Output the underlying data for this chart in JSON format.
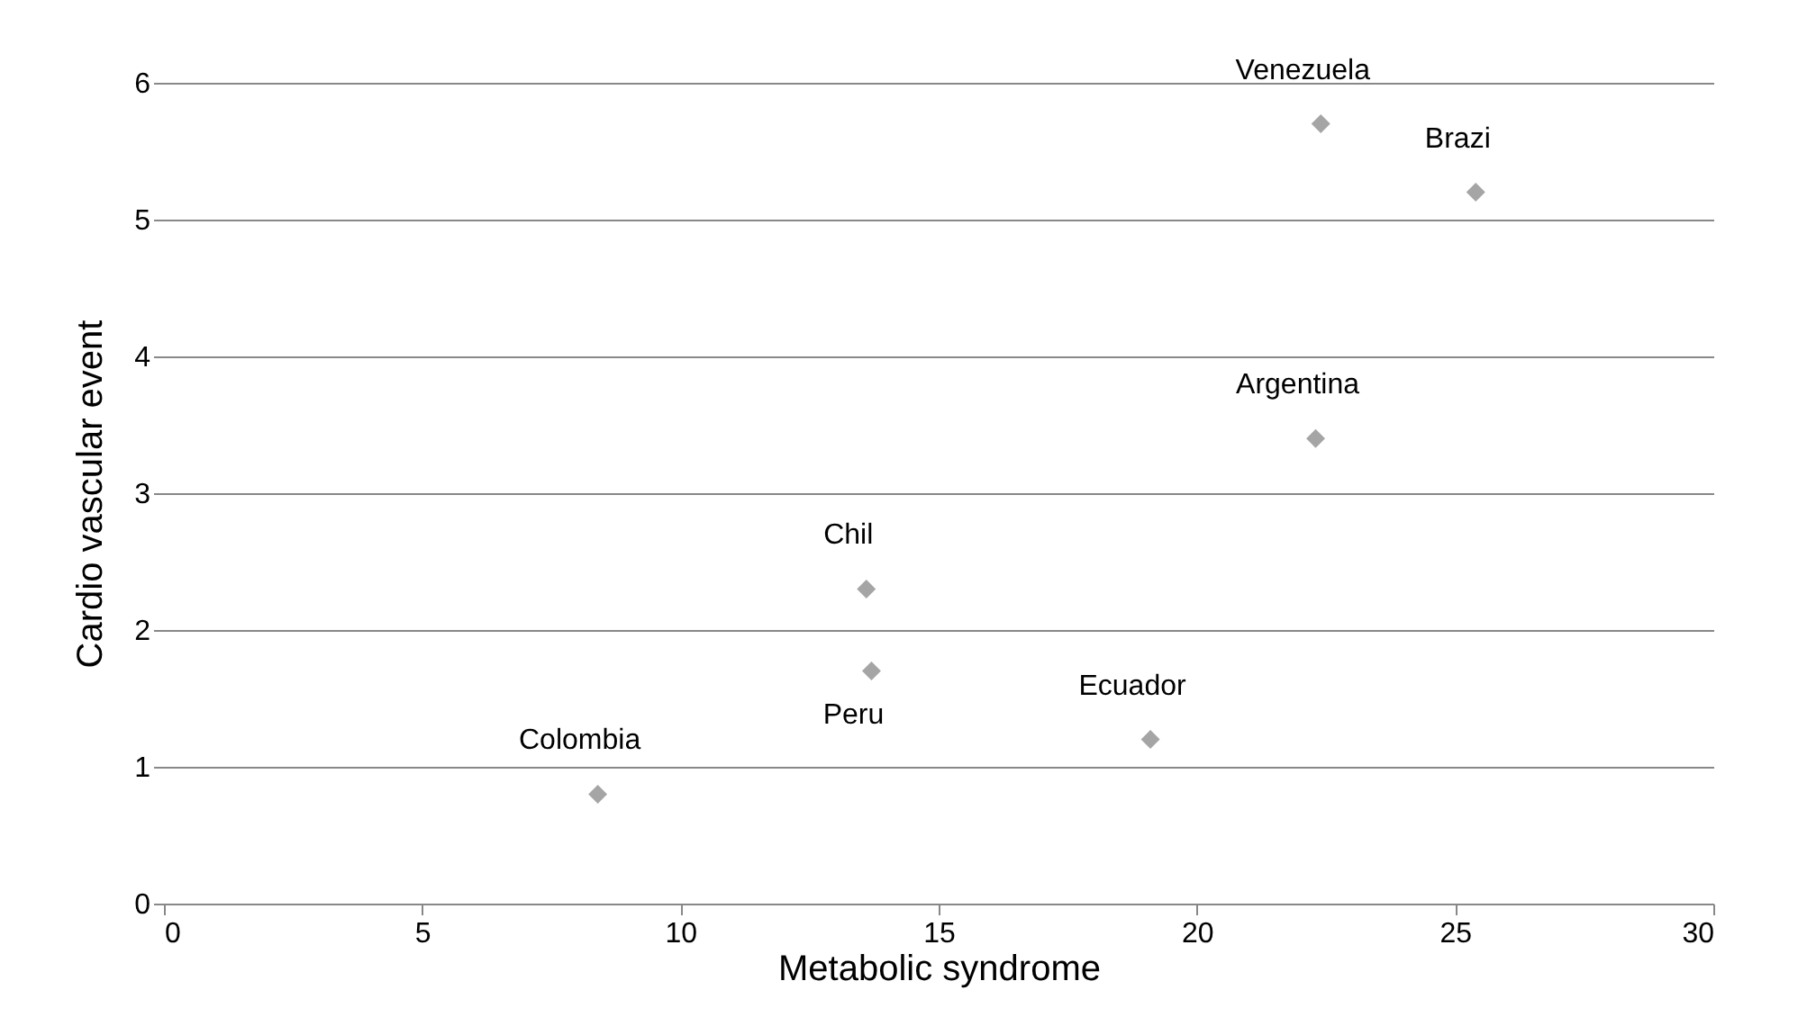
{
  "chart_data": {
    "type": "scatter",
    "xlabel": "Metabolic syndrome",
    "ylabel": "Cardio vascular event",
    "marker": "diamond",
    "grid": "y",
    "series": [
      {
        "color": "#a5a5a5",
        "x": [
          8.4,
          13.6,
          13.7,
          19.1,
          22.3,
          22.4,
          25.4
        ],
        "values": [
          0.8,
          2.3,
          1.7,
          1.2,
          3.4,
          5.7,
          5.2
        ]
      }
    ],
    "xlim": [
      0,
      30
    ],
    "xticks": [
      0,
      5,
      10,
      15,
      20,
      25,
      30
    ],
    "ylim": [
      0,
      6
    ],
    "yticks": [
      0,
      1,
      2,
      3,
      4,
      5,
      6
    ],
    "annotations": [
      {
        "text": "Colombia",
        "x": 8.4,
        "y": 0.8
      },
      {
        "text": "Chil",
        "x": 13.6,
        "y": 2.3
      },
      {
        "text": "Peru",
        "x": 13.7,
        "y": 1.7
      },
      {
        "text": "Ecuador",
        "x": 19.1,
        "y": 1.2
      },
      {
        "text": "Argentina",
        "x": 22.3,
        "y": 3.4
      },
      {
        "text": "Venezuela",
        "x": 22.4,
        "y": 5.7
      },
      {
        "text": "Brazi",
        "x": 25.4,
        "y": 5.2
      }
    ]
  }
}
